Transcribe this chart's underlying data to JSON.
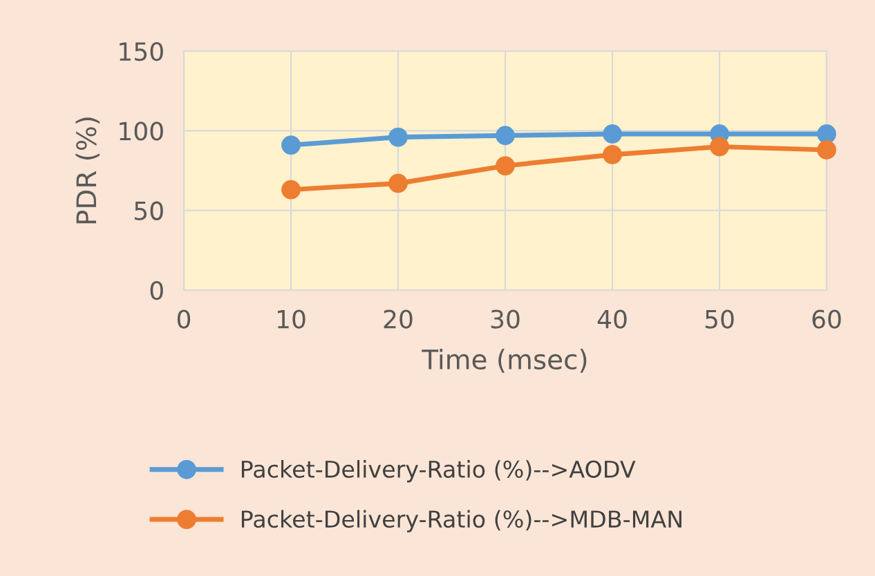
{
  "chart_data": {
    "type": "line",
    "xlabel": "Time (msec)",
    "ylabel": "PDR (%)",
    "x": [
      10,
      20,
      30,
      40,
      50,
      60
    ],
    "series": [
      {
        "name": "Packet-Delivery-Ratio (%)-->AODV",
        "color": "#5b9bd5",
        "values": [
          91,
          96,
          97,
          98,
          98,
          98
        ]
      },
      {
        "name": "Packet-Delivery-Ratio (%)-->MDB-MAN",
        "color": "#ed7d31",
        "values": [
          63,
          67,
          78,
          85,
          90,
          88
        ]
      }
    ],
    "xlim": [
      0,
      60
    ],
    "xticks": [
      0,
      10,
      20,
      30,
      40,
      50,
      60
    ],
    "ylim": [
      0,
      150
    ],
    "yticks": [
      0,
      50,
      100,
      150
    ],
    "grid": true,
    "legend": "bottom",
    "marker": "circle",
    "line_style": "solid"
  }
}
